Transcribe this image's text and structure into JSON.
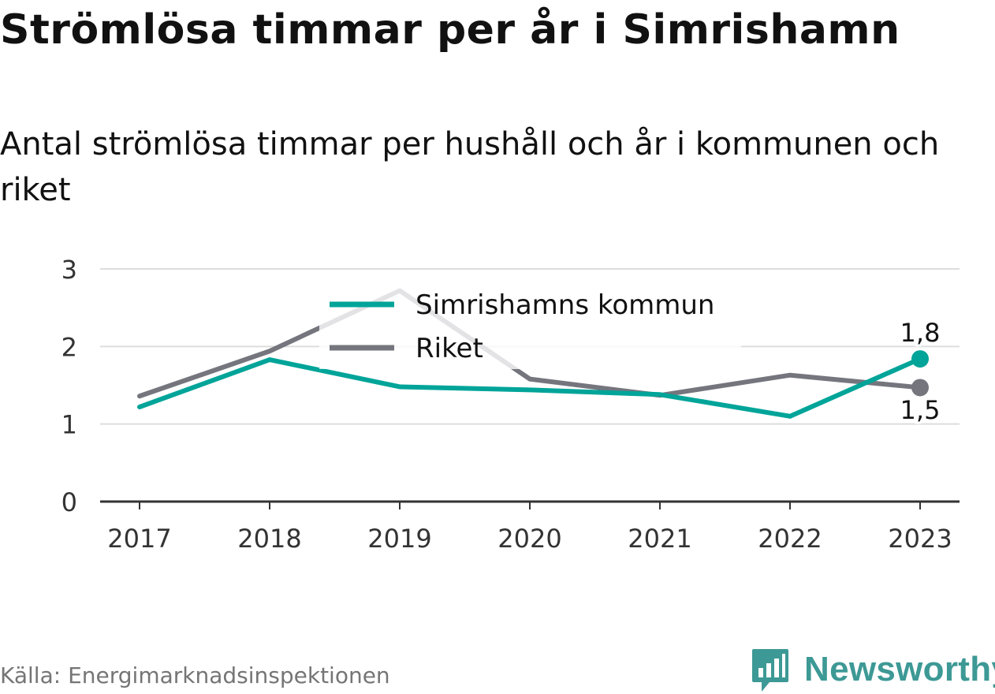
{
  "title": "Strömlösa timmar per år i Simrishamn",
  "subtitle": "Antal strömlösa timmar per hushåll och år i kommunen och riket",
  "source": "Källa: Energimarknadsinspektionen",
  "brand": "Newsworthy",
  "colors": {
    "accent": "#00a499",
    "national": "#75757e",
    "grid": "#dddddd",
    "axis": "#333333",
    "brand": "#3d9995"
  },
  "chart_data": {
    "type": "line",
    "x": [
      "2017",
      "2018",
      "2019",
      "2020",
      "2021",
      "2022",
      "2023"
    ],
    "yticks": [
      0,
      1,
      2,
      3
    ],
    "ylim": [
      0,
      3
    ],
    "series": [
      {
        "name": "Simrishamns kommun",
        "color": "#00a499",
        "values": [
          1.22,
          1.83,
          1.48,
          1.44,
          1.38,
          1.1,
          1.84
        ]
      },
      {
        "name": "Riket",
        "color": "#75757e",
        "values": [
          1.36,
          1.94,
          2.72,
          1.58,
          1.37,
          1.63,
          1.47
        ]
      }
    ],
    "end_labels": [
      "1,8",
      "1,5"
    ],
    "legend": "top-center",
    "grid": true
  }
}
